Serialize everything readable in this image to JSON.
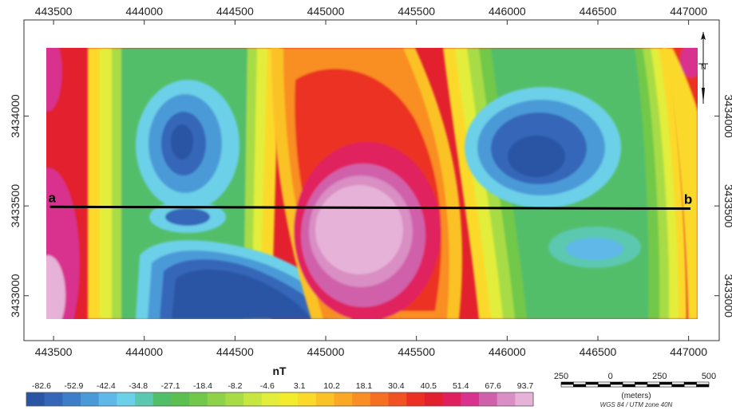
{
  "map": {
    "x_axis": {
      "ticks": [
        "443500",
        "444000",
        "444500",
        "445000",
        "445500",
        "446000",
        "446500",
        "447000"
      ],
      "values": [
        443500,
        444000,
        444500,
        445000,
        445500,
        446000,
        446500,
        447000
      ]
    },
    "y_axis": {
      "ticks": [
        "3433000",
        "3433500",
        "3434000"
      ],
      "values": [
        3433000,
        3433500,
        3434000
      ]
    },
    "extent": {
      "x_min": 443460,
      "x_max": 447050,
      "y_min": 3432870,
      "y_max": 3434380
    },
    "profile": {
      "start_label": "a",
      "end_label": "b",
      "start": [
        443480,
        3433495
      ],
      "end": [
        447010,
        3433485
      ]
    },
    "north_arrow": {
      "letter": "N",
      "icon": "north-arrow-icon"
    }
  },
  "legend": {
    "title": "nT",
    "labels": [
      "-82.6",
      "-52.9",
      "-42.4",
      "-34.8",
      "-27.1",
      "-18.4",
      "-8.2",
      "-4.6",
      "3.1",
      "10.2",
      "18.1",
      "30.4",
      "40.5",
      "51.4",
      "67.6",
      "93.7"
    ],
    "colors": [
      "#2a55a5",
      "#3566b8",
      "#3e7ec8",
      "#4b9ad8",
      "#5fb8e8",
      "#6cd0e8",
      "#5cc8b0",
      "#52be6a",
      "#5cc050",
      "#72c84a",
      "#8ed24a",
      "#a8dc46",
      "#c8e640",
      "#e2ee3a",
      "#f2ec2c",
      "#fbd92a",
      "#fbc228",
      "#fba826",
      "#f98e24",
      "#f57022",
      "#f05222",
      "#ec3024",
      "#e2202e",
      "#e0205e",
      "#d8328e",
      "#d060aa",
      "#d98ec4",
      "#e6b2d8"
    ]
  },
  "scale_bar": {
    "labels": [
      "250",
      "0",
      "250",
      "500"
    ],
    "values": [
      -250,
      0,
      250,
      500
    ],
    "unit": "(meters)",
    "crs": "WGS 84 / UTM zone 40N"
  }
}
